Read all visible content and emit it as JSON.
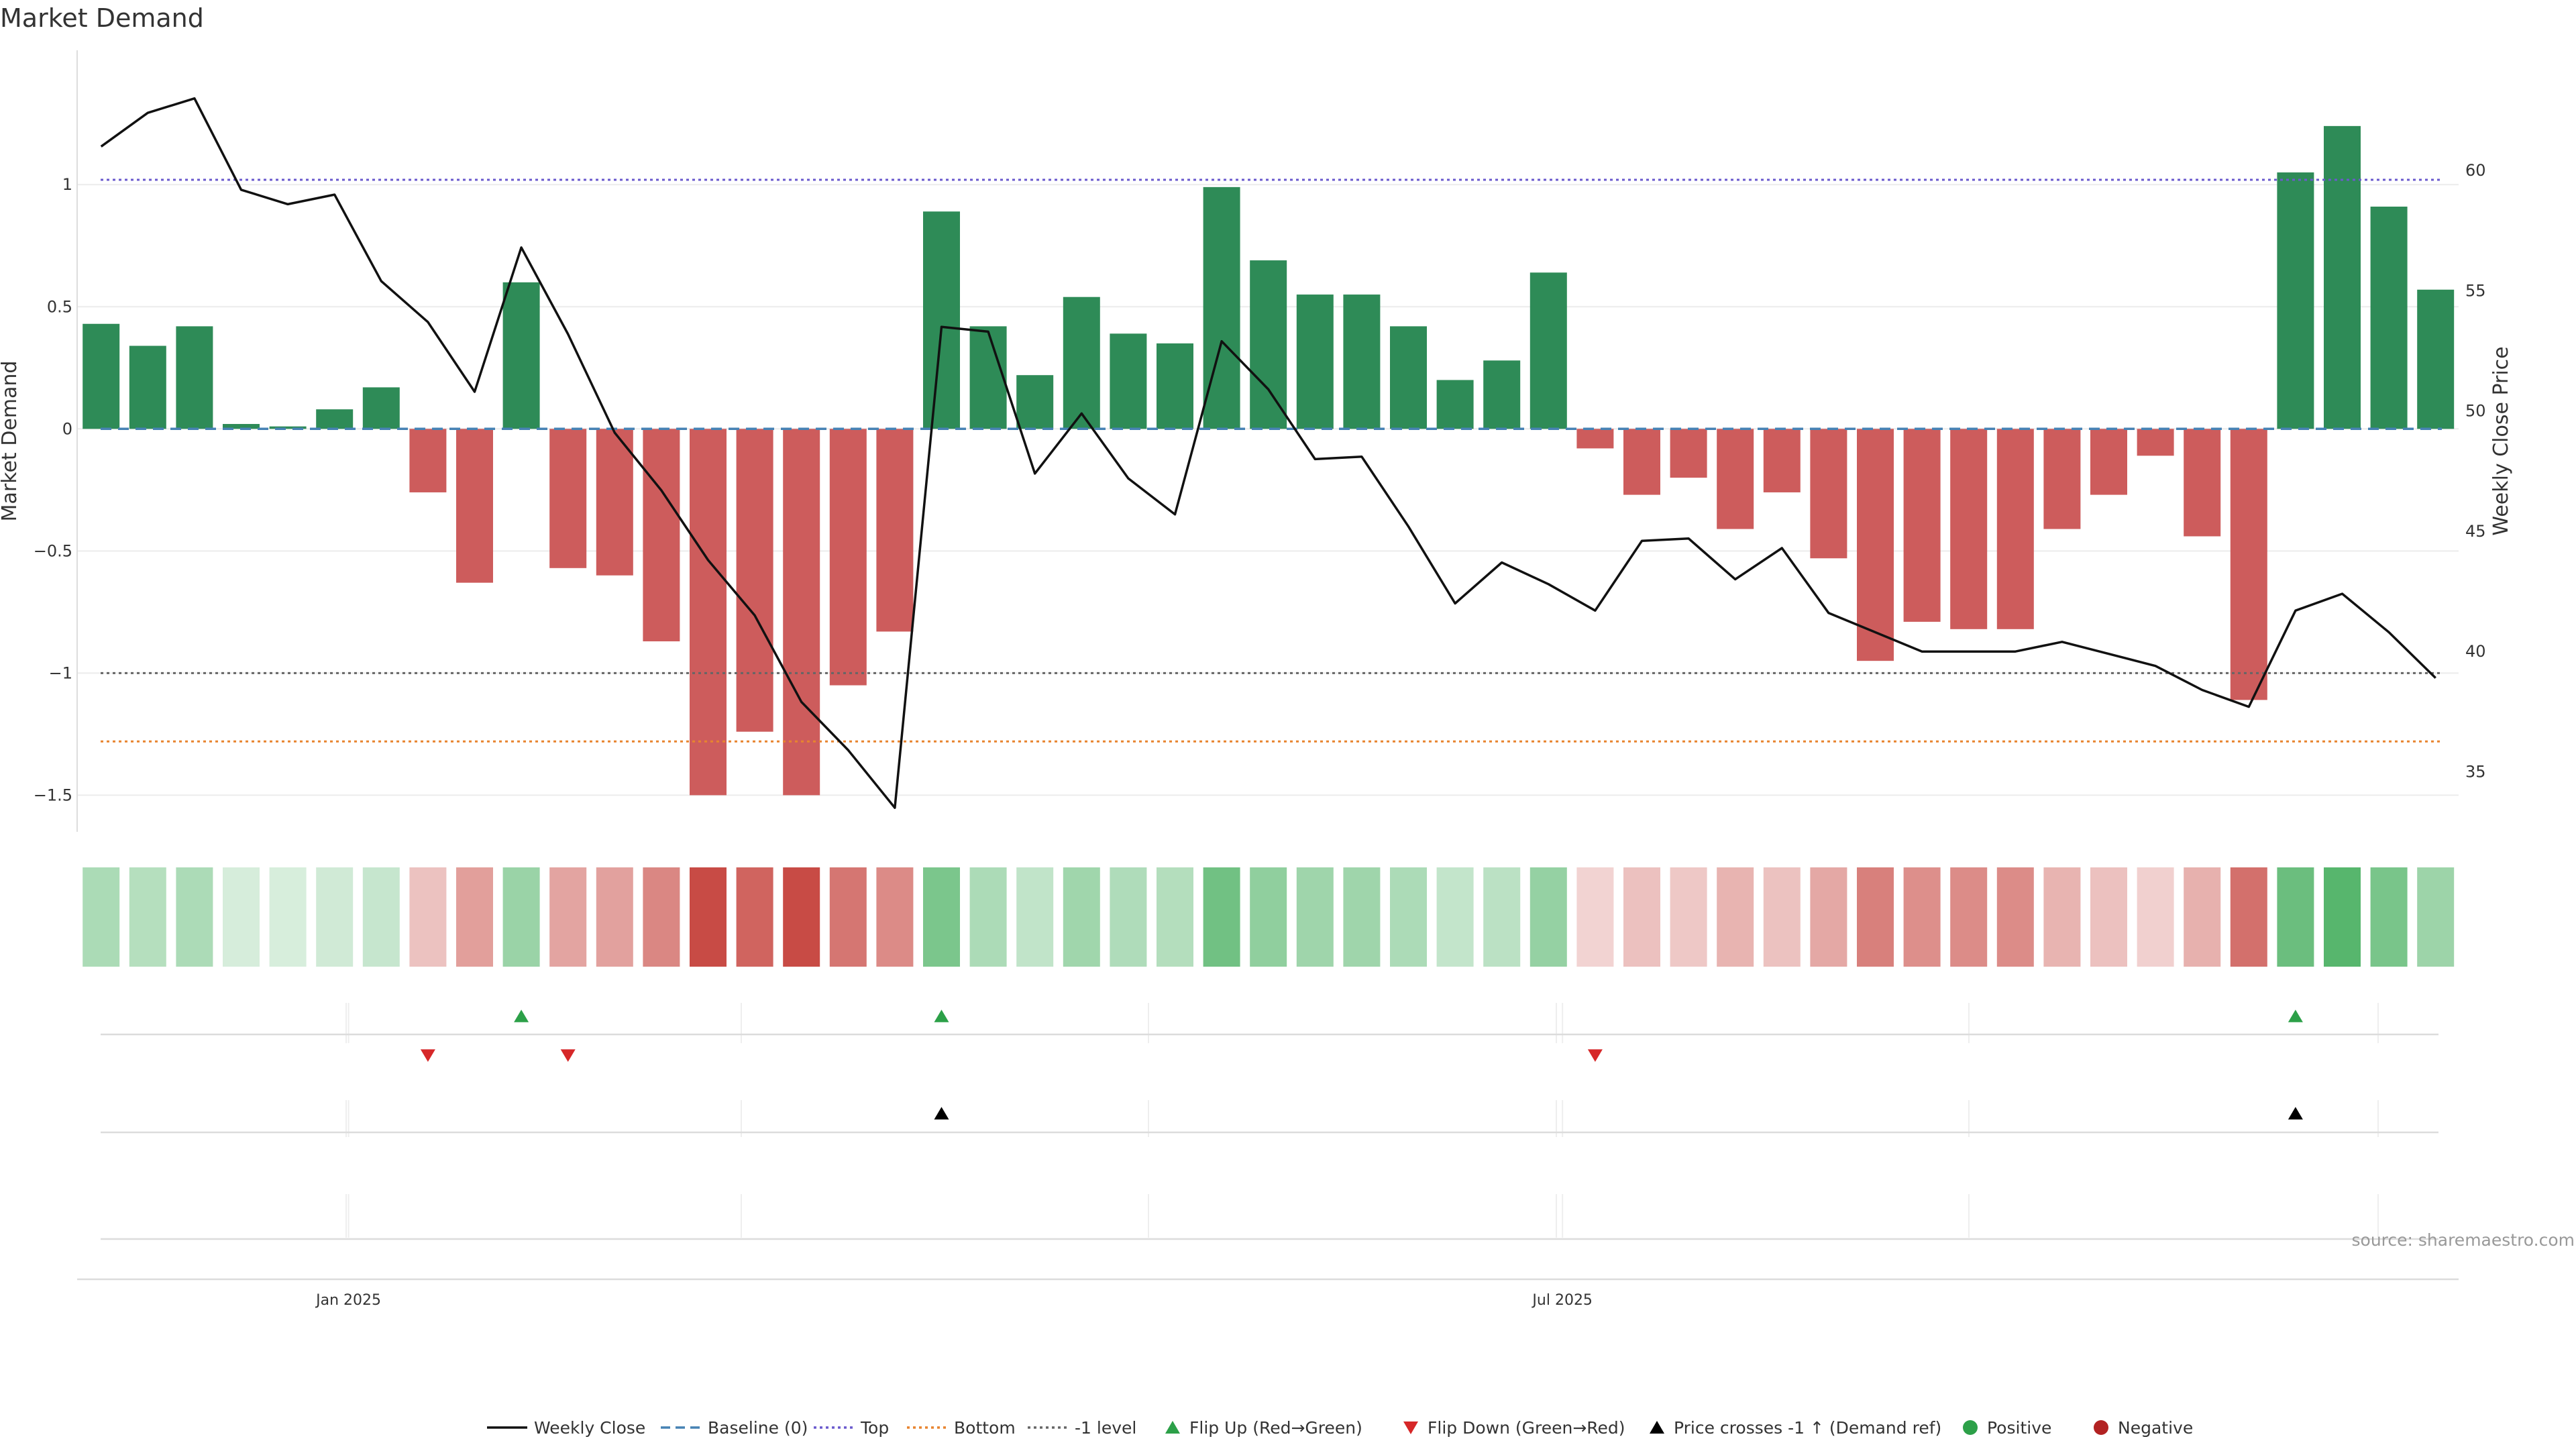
{
  "chart_data": {
    "type": "bar",
    "title": "Market Demand",
    "ylabel": "Market Demand",
    "y2label": "Weekly Close Price",
    "ylim": [
      -1.65,
      1.55
    ],
    "y2lim": [
      32.5,
      65.0
    ],
    "yticks": [
      {
        "value": 1,
        "label": "1"
      },
      {
        "value": 0.5,
        "label": "0.5"
      },
      {
        "value": 0,
        "label": "0"
      },
      {
        "value": -0.5,
        "label": "−0.5"
      },
      {
        "value": -1,
        "label": "−1"
      },
      {
        "value": -1.5,
        "label": "−1.5"
      }
    ],
    "y2ticks": [
      {
        "value": 60,
        "label": "60"
      },
      {
        "value": 55,
        "label": "55"
      },
      {
        "value": 50,
        "label": "50"
      },
      {
        "value": 45,
        "label": "45"
      },
      {
        "value": 40,
        "label": "40"
      },
      {
        "value": 35,
        "label": "35"
      }
    ],
    "xticks": [
      {
        "index": 5.3,
        "label": "Jan 2025"
      },
      {
        "index": 31.3,
        "label": "Jul 2025"
      }
    ],
    "demand": [
      0.43,
      0.34,
      0.42,
      0.02,
      0.01,
      0.08,
      0.17,
      -0.26,
      -0.63,
      0.6,
      -0.57,
      -0.6,
      -0.87,
      -1.5,
      -1.24,
      -1.5,
      -1.05,
      -0.83,
      0.89,
      0.42,
      0.22,
      0.54,
      0.39,
      0.35,
      0.99,
      0.69,
      0.55,
      0.55,
      0.42,
      0.2,
      0.28,
      0.64,
      -0.08,
      -0.27,
      -0.2,
      -0.41,
      -0.26,
      -0.53,
      -0.95,
      -0.79,
      -0.82,
      -0.82,
      -0.41,
      -0.27,
      -0.11,
      -0.44,
      -1.11,
      1.05,
      1.24,
      0.91,
      0.57
    ],
    "weekly_close": [
      61.0,
      62.4,
      63.0,
      59.2,
      58.6,
      59.0,
      55.4,
      53.7,
      50.8,
      56.8,
      53.2,
      49.1,
      46.7,
      43.8,
      41.5,
      37.9,
      35.9,
      33.5,
      53.5,
      53.3,
      47.4,
      49.9,
      47.2,
      45.7,
      52.9,
      50.9,
      48.0,
      48.1,
      45.2,
      42.0,
      43.7,
      42.8,
      41.7,
      44.6,
      44.7,
      43.0,
      44.3,
      41.6,
      40.8,
      40.0,
      40.0,
      40.0,
      40.4,
      39.9,
      39.4,
      38.4,
      37.7,
      41.7,
      42.4,
      40.8,
      38.9
    ],
    "top_level": 1.02,
    "bottom_level": -1.28,
    "minus_one_level": -1.0,
    "baseline": 0,
    "flip_up_indices": [
      9,
      18,
      47
    ],
    "flip_down_indices": [
      7,
      10,
      32
    ],
    "price_cross_indices": [
      18,
      47
    ],
    "colors": {
      "positive": "#2e8b57",
      "negative": "#cd5c5c",
      "close_line": "#111111",
      "baseline": "#4682b4",
      "top": "#6a5acd",
      "bottom": "#e8842e",
      "minus_one": "#666666",
      "flip_up": "#2ca048",
      "flip_down": "#d62728",
      "price_cross": "#000000"
    },
    "legend": [
      {
        "label": "Weekly Close",
        "kind": "solid-line",
        "color": "#111111"
      },
      {
        "label": "Baseline (0)",
        "kind": "dash-line",
        "color": "#4682b4"
      },
      {
        "label": "Top",
        "kind": "dot-line",
        "color": "#6a5acd"
      },
      {
        "label": "Bottom",
        "kind": "dot-line",
        "color": "#e8842e"
      },
      {
        "label": "-1 level",
        "kind": "dot-line",
        "color": "#666666"
      },
      {
        "label": "Flip Up (Red→Green)",
        "kind": "tri-up",
        "color": "#2ca048"
      },
      {
        "label": "Flip Down (Green→Red)",
        "kind": "tri-down",
        "color": "#d62728"
      },
      {
        "label": "Price crosses -1 ↑ (Demand ref)",
        "kind": "tri-up",
        "color": "#000000"
      },
      {
        "label": "Positive",
        "kind": "dot",
        "color": "#2ca048"
      },
      {
        "label": "Negative",
        "kind": "dot",
        "color": "#b22222"
      }
    ],
    "source": "source: sharemaestro.com"
  }
}
